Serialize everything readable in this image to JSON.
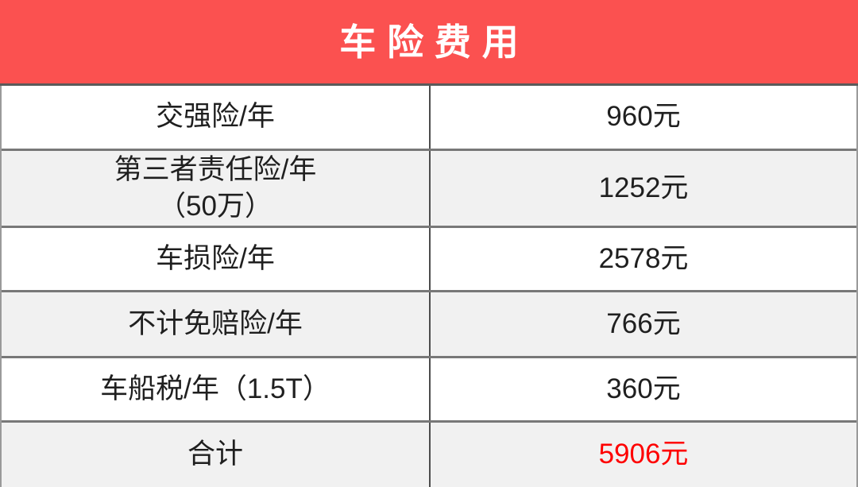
{
  "header": {
    "title": "车险费用"
  },
  "table": {
    "rows": [
      {
        "label": "交强险/年",
        "value": "960元"
      },
      {
        "label": "第三者责任险/年\n（50万）",
        "value": "1252元"
      },
      {
        "label": "车损险/年",
        "value": "2578元"
      },
      {
        "label": "不计免赔险/年",
        "value": "766元"
      },
      {
        "label": "车船税/年（1.5T）",
        "value": "360元"
      },
      {
        "label": "合计",
        "value": "5906元"
      }
    ]
  },
  "colors": {
    "title_bar_bg": "#fb5150",
    "title_text": "#ffffff",
    "row_alt_bg": "#f1f1f1",
    "row_bg": "#ffffff",
    "cell_text": "#1f1f1f",
    "total_value_text": "#fe0000",
    "horizontal_rule": "#787878",
    "column_divider": "#4c4c4c",
    "outer_border": "#9a9a9a"
  },
  "chart_data": {
    "type": "table",
    "title": "车险费用",
    "unit": "元",
    "rows": [
      {
        "item": "交强险/年",
        "cost": 960
      },
      {
        "item": "第三者责任险/年（50万）",
        "cost": 1252
      },
      {
        "item": "车损险/年",
        "cost": 2578
      },
      {
        "item": "不计免赔险/年",
        "cost": 766
      },
      {
        "item": "车船税/年（1.5T）",
        "cost": 360
      }
    ],
    "total": {
      "item": "合计",
      "cost": 5906
    }
  }
}
